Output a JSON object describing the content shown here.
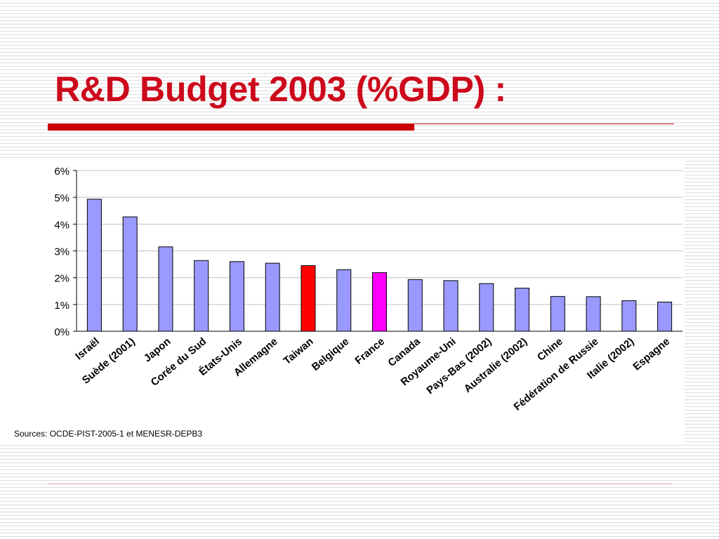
{
  "slide": {
    "title": "R&D Budget 2003 (%GDP) :",
    "source": "Sources: OCDE-PIST-2005-1 et MENESR-DEPB3"
  },
  "colors": {
    "title": "#cc0a1c",
    "rule": "#cc0000",
    "bar_default": "#9999ff",
    "bar_taiwan": "#ff0000",
    "bar_france": "#ff00ff"
  },
  "chart_data": {
    "type": "bar",
    "title": "",
    "xlabel": "",
    "ylabel": "",
    "ylim": [
      0,
      6
    ],
    "yticks": [
      "0%",
      "1%",
      "2%",
      "3%",
      "4%",
      "5%",
      "6%"
    ],
    "grid": true,
    "categories": [
      "Israël",
      "Suède (2001)",
      "Japon",
      "Corée du Sud",
      "États-Unis",
      "Allemagne",
      "Taiwan",
      "Belgique",
      "France",
      "Canada",
      "Royaume-Uni",
      "Pays-Bas (2002)",
      "Australie (2002)",
      "Chine",
      "Fédération de Russie",
      "Italie (2002)",
      "Espagne"
    ],
    "values": [
      4.93,
      4.27,
      3.15,
      2.64,
      2.6,
      2.54,
      2.45,
      2.3,
      2.19,
      1.93,
      1.89,
      1.78,
      1.61,
      1.3,
      1.29,
      1.14,
      1.09
    ],
    "bar_colors": [
      "#9999ff",
      "#9999ff",
      "#9999ff",
      "#9999ff",
      "#9999ff",
      "#9999ff",
      "#ff0000",
      "#9999ff",
      "#ff00ff",
      "#9999ff",
      "#9999ff",
      "#9999ff",
      "#9999ff",
      "#9999ff",
      "#9999ff",
      "#9999ff",
      "#9999ff"
    ]
  }
}
